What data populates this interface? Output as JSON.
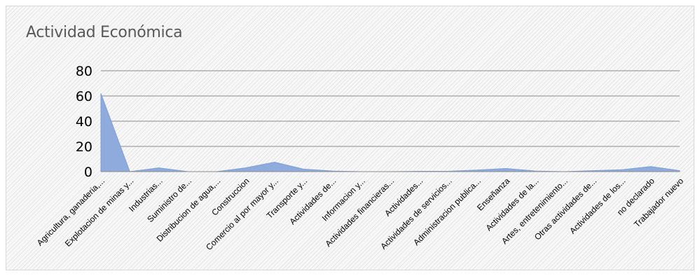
{
  "chart_data": {
    "type": "area",
    "title": "Actividad Económica",
    "xlabel": "",
    "ylabel": "",
    "ylim": [
      0,
      80
    ],
    "yticks": [
      0,
      20,
      40,
      60,
      80
    ],
    "grid": true,
    "legend": "none",
    "colors": {
      "fill": "#8faadc",
      "stroke": "#7f9fd6",
      "grid": "#8c8c8c",
      "text": "#000000",
      "title": "#595959"
    },
    "categories": [
      "Agricultura, ganaderia,...",
      "Explotacion de minas y...",
      "Industrias...",
      "Suministro de...",
      "Distribucion de agua,...",
      "Construccion",
      "Comercio al por mayor y...",
      "Transporte y...",
      "Actividades de...",
      "Informacion y...",
      "Actividades financieras...",
      "Actividades...",
      "Actividades de servicios...",
      "Administracion publica...",
      "Enseñanza",
      "Actividades de la...",
      "Artes, entretenimiento...",
      "Otras actividades de...",
      "Actividades de los...",
      "no declarado",
      "Trabajador nuevo"
    ],
    "series": [
      {
        "values": [
          62,
          0,
          3,
          0,
          0,
          3,
          7.5,
          2,
          0.5,
          0,
          0,
          0.3,
          0.3,
          1.3,
          2.5,
          0.5,
          0,
          0.8,
          1.5,
          4,
          0.8
        ]
      }
    ]
  }
}
